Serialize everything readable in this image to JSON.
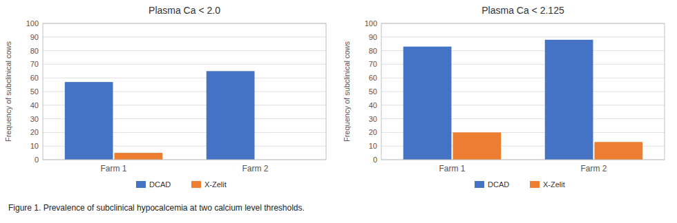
{
  "chart_data": [
    {
      "type": "bar",
      "title": "Plasma Ca < 2.0",
      "ylabel": "Frequency of subclinical cows",
      "categories": [
        "Farm 1",
        "Farm 2"
      ],
      "series": [
        {
          "name": "DCAD",
          "color": "#4472C4",
          "values": [
            57,
            65
          ]
        },
        {
          "name": "X-Zelit",
          "color": "#ED7D31",
          "values": [
            5,
            0
          ]
        }
      ],
      "ylim": [
        0,
        100
      ],
      "yticks": [
        0,
        10,
        20,
        30,
        40,
        50,
        60,
        70,
        80,
        90,
        100
      ],
      "grid": true,
      "legend": "bottom"
    },
    {
      "type": "bar",
      "title": "Plasma Ca < 2.125",
      "ylabel": "Frequency of subclinical cows",
      "categories": [
        "Farm 1",
        "Farm 2"
      ],
      "series": [
        {
          "name": "DCAD",
          "color": "#4472C4",
          "values": [
            83,
            88
          ]
        },
        {
          "name": "X-Zelit",
          "color": "#ED7D31",
          "values": [
            20,
            13
          ]
        }
      ],
      "ylim": [
        0,
        100
      ],
      "yticks": [
        0,
        10,
        20,
        30,
        40,
        50,
        60,
        70,
        80,
        90,
        100
      ],
      "grid": true,
      "legend": "bottom"
    }
  ],
  "caption": "Figure 1. Prevalence of subclinical hypocalcemia at two calcium level thresholds."
}
